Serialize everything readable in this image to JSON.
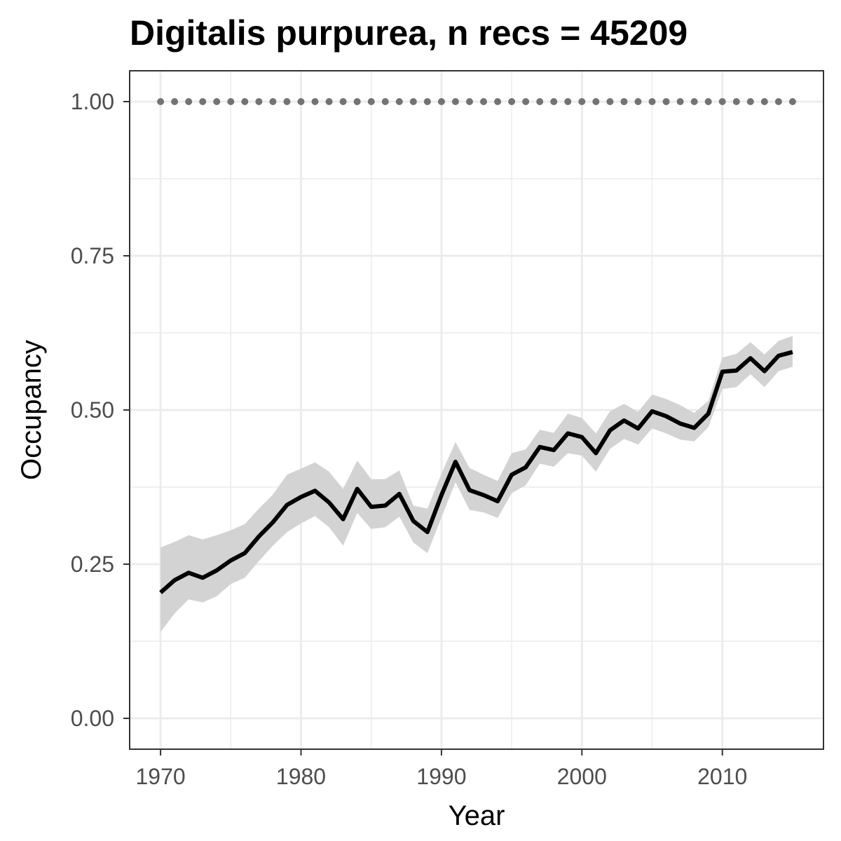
{
  "chart_data": {
    "type": "line",
    "title": "Digitalis purpurea, n recs = 45209",
    "xlabel": "Year",
    "ylabel": "Occupancy",
    "xlim": [
      1967.8,
      2017.2
    ],
    "ylim": [
      -0.05,
      1.05
    ],
    "x_ticks": [
      1970,
      1980,
      1990,
      2000,
      2010
    ],
    "x_tick_labels": [
      "1970",
      "1980",
      "1990",
      "2000",
      "2010"
    ],
    "y_ticks": [
      0,
      0.25,
      0.5,
      0.75,
      1.0
    ],
    "y_tick_labels": [
      "0.00",
      "0.25",
      "0.50",
      "0.75",
      "1.00"
    ],
    "grid": true,
    "colors": {
      "line": "#000000",
      "ribbon": "#d3d3d3",
      "dots": "#737373",
      "grid": "#ebebeb",
      "border": "#333333"
    },
    "series": [
      {
        "x": [
          1970,
          1971,
          1972,
          1973,
          1974,
          1975,
          1976,
          1977,
          1978,
          1979,
          1980,
          1981,
          1982,
          1983,
          1984,
          1985,
          1986,
          1987,
          1988,
          1989,
          1990,
          1991,
          1992,
          1993,
          1994,
          1995,
          1996,
          1997,
          1998,
          1999,
          2000,
          2001,
          2002,
          2003,
          2004,
          2005,
          2006,
          2007,
          2008,
          2009,
          2010,
          2011,
          2012,
          2013,
          2014,
          2015
        ],
        "y": [
          0.204,
          0.224,
          0.236,
          0.228,
          0.24,
          0.256,
          0.268,
          0.295,
          0.318,
          0.346,
          0.359,
          0.369,
          0.35,
          0.323,
          0.372,
          0.343,
          0.345,
          0.364,
          0.32,
          0.302,
          0.362,
          0.416,
          0.37,
          0.362,
          0.352,
          0.395,
          0.407,
          0.44,
          0.435,
          0.462,
          0.456,
          0.43,
          0.467,
          0.483,
          0.47,
          0.498,
          0.49,
          0.478,
          0.471,
          0.494,
          0.562,
          0.564,
          0.584,
          0.563,
          0.588,
          0.594
        ],
        "lower": [
          0.14,
          0.17,
          0.193,
          0.188,
          0.198,
          0.218,
          0.228,
          0.255,
          0.28,
          0.302,
          0.316,
          0.328,
          0.31,
          0.28,
          0.333,
          0.307,
          0.31,
          0.327,
          0.285,
          0.268,
          0.326,
          0.383,
          0.338,
          0.334,
          0.325,
          0.365,
          0.378,
          0.413,
          0.408,
          0.43,
          0.426,
          0.4,
          0.437,
          0.453,
          0.444,
          0.47,
          0.462,
          0.452,
          0.449,
          0.472,
          0.534,
          0.537,
          0.558,
          0.537,
          0.563,
          0.57
        ],
        "upper": [
          0.277,
          0.286,
          0.297,
          0.29,
          0.297,
          0.305,
          0.315,
          0.34,
          0.363,
          0.395,
          0.405,
          0.415,
          0.4,
          0.372,
          0.418,
          0.388,
          0.388,
          0.402,
          0.345,
          0.34,
          0.397,
          0.448,
          0.406,
          0.395,
          0.385,
          0.43,
          0.436,
          0.468,
          0.463,
          0.494,
          0.487,
          0.462,
          0.498,
          0.51,
          0.497,
          0.525,
          0.518,
          0.508,
          0.495,
          0.515,
          0.585,
          0.591,
          0.61,
          0.59,
          0.612,
          0.62
        ]
      },
      {
        "x": [
          1970,
          1971,
          1972,
          1973,
          1974,
          1975,
          1976,
          1977,
          1978,
          1979,
          1980,
          1981,
          1982,
          1983,
          1984,
          1985,
          1986,
          1987,
          1988,
          1989,
          1990,
          1991,
          1992,
          1993,
          1994,
          1995,
          1996,
          1997,
          1998,
          1999,
          2000,
          2001,
          2002,
          2003,
          2004,
          2005,
          2006,
          2007,
          2008,
          2009,
          2010,
          2011,
          2012,
          2013,
          2014,
          2015
        ],
        "y": [
          1,
          1,
          1,
          1,
          1,
          1,
          1,
          1,
          1,
          1,
          1,
          1,
          1,
          1,
          1,
          1,
          1,
          1,
          1,
          1,
          1,
          1,
          1,
          1,
          1,
          1,
          1,
          1,
          1,
          1,
          1,
          1,
          1,
          1,
          1,
          1,
          1,
          1,
          1,
          1,
          1,
          1,
          1,
          1,
          1,
          1
        ]
      }
    ]
  }
}
